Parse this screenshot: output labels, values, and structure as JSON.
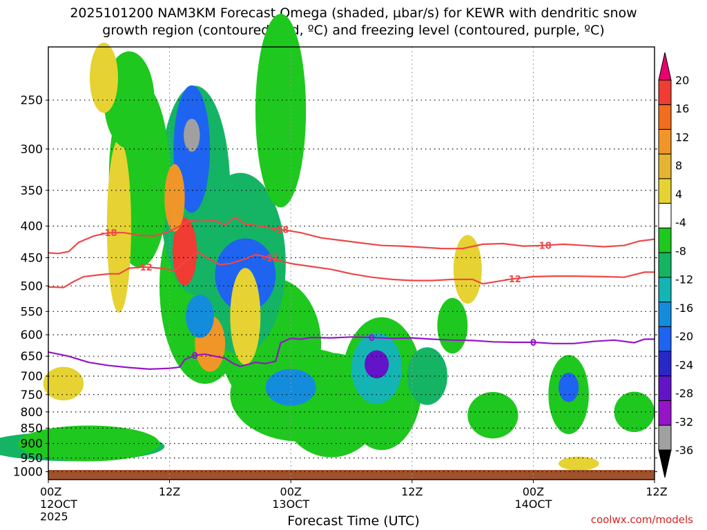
{
  "title": {
    "line1": "2025101200 NAM3KM Forecast Omega (shaded, µbar/s) for KEWR with dendritic snow",
    "line2": "growth region (contoured, red, ºC) and freezing level (contoured, purple, ºC)"
  },
  "credit": "coolwx.com/models",
  "chart_data": {
    "type": "heatmap",
    "xlabel": "Forecast Time (UTC)",
    "ylabel": "",
    "x_range_hours": [
      0,
      60
    ],
    "y_range_hpa": [
      1030,
      205
    ],
    "y_scale": "log-pressure",
    "grid": true,
    "x_ticks": [
      {
        "hour": 0,
        "lines": [
          "00Z",
          "12OCT",
          "2025"
        ]
      },
      {
        "hour": 12,
        "lines": [
          "12Z"
        ]
      },
      {
        "hour": 24,
        "lines": [
          "00Z",
          "13OCT"
        ]
      },
      {
        "hour": 36,
        "lines": [
          "12Z"
        ]
      },
      {
        "hour": 48,
        "lines": [
          "00Z",
          "14OCT"
        ]
      },
      {
        "hour": 60,
        "lines": [
          "12Z"
        ]
      }
    ],
    "y_ticks": [
      250,
      300,
      350,
      400,
      450,
      500,
      550,
      600,
      650,
      700,
      750,
      800,
      850,
      900,
      950,
      1000
    ],
    "colorbar": {
      "labels": [
        "20",
        "16",
        "12",
        "8",
        "4",
        "-4",
        "-8",
        "-12",
        "-16",
        "-20",
        "-24",
        "-28",
        "-32",
        "-36"
      ],
      "colors": [
        "#e8006e",
        "#f03c32",
        "#f06e1e",
        "#f09628",
        "#e6b432",
        "#e6d232",
        "#ffffff",
        "#1ec81e",
        "#14b464",
        "#14b4b4",
        "#148cdc",
        "#1e64f0",
        "#2828c8",
        "#6414c8",
        "#9614c8",
        "#a0a0a0",
        "#000000"
      ]
    },
    "contours": [
      {
        "label": "-18",
        "color": "#f04646",
        "points": [
          [
            0,
            442
          ],
          [
            1,
            443
          ],
          [
            2,
            440
          ],
          [
            3,
            425
          ],
          [
            4.5,
            415
          ],
          [
            6,
            410
          ],
          [
            7.5,
            410
          ],
          [
            9,
            414
          ],
          [
            10.5,
            415
          ],
          [
            12,
            408
          ],
          [
            13,
            400
          ],
          [
            14,
            392
          ],
          [
            15,
            393
          ],
          [
            16.5,
            392
          ],
          [
            17.5,
            398
          ],
          [
            18.5,
            387
          ],
          [
            19.5,
            397
          ],
          [
            21,
            400
          ],
          [
            23,
            405
          ],
          [
            25,
            410
          ],
          [
            27,
            418
          ],
          [
            29,
            422
          ],
          [
            31,
            426
          ],
          [
            33,
            430
          ],
          [
            35,
            431
          ],
          [
            37,
            433
          ],
          [
            39,
            435
          ],
          [
            41,
            435
          ],
          [
            43,
            428
          ],
          [
            45,
            427
          ],
          [
            47,
            431
          ],
          [
            49,
            430
          ],
          [
            51,
            428
          ],
          [
            53,
            430
          ],
          [
            55,
            432
          ],
          [
            57,
            430
          ],
          [
            58.5,
            423
          ],
          [
            60,
            420
          ]
        ]
      },
      {
        "label": "-12",
        "color": "#f04646",
        "points": [
          [
            0,
            502
          ],
          [
            1.5,
            503
          ],
          [
            2.5,
            492
          ],
          [
            3.5,
            483
          ],
          [
            5,
            480
          ],
          [
            6,
            478
          ],
          [
            7,
            478
          ],
          [
            8,
            468
          ],
          [
            9.5,
            466
          ],
          [
            11,
            468
          ],
          [
            12.5,
            472
          ],
          [
            14,
            450
          ],
          [
            14.8,
            440
          ],
          [
            15.5,
            448
          ],
          [
            17,
            462
          ],
          [
            18,
            460
          ],
          [
            19.5,
            452
          ],
          [
            20.5,
            445
          ],
          [
            22,
            450
          ],
          [
            24,
            460
          ],
          [
            26,
            465
          ],
          [
            28,
            470
          ],
          [
            30,
            478
          ],
          [
            32,
            484
          ],
          [
            34,
            488
          ],
          [
            36,
            490
          ],
          [
            38,
            490
          ],
          [
            40,
            488
          ],
          [
            42,
            488
          ],
          [
            43,
            496
          ],
          [
            44,
            493
          ],
          [
            46,
            487
          ],
          [
            48,
            483
          ],
          [
            50,
            482
          ],
          [
            52,
            482
          ],
          [
            55,
            483
          ],
          [
            57,
            484
          ],
          [
            59,
            475
          ],
          [
            60,
            475
          ]
        ]
      },
      {
        "label": "0",
        "color": "#9614c8",
        "points": [
          [
            0,
            640
          ],
          [
            2,
            650
          ],
          [
            4,
            665
          ],
          [
            6,
            673
          ],
          [
            8,
            678
          ],
          [
            10,
            682
          ],
          [
            12,
            680
          ],
          [
            13,
            677
          ],
          [
            13.5,
            658
          ],
          [
            14.5,
            648
          ],
          [
            15.5,
            645
          ],
          [
            16.5,
            650
          ],
          [
            17.5,
            655
          ],
          [
            18.3,
            668
          ],
          [
            19,
            675
          ],
          [
            20.5,
            665
          ],
          [
            21.5,
            668
          ],
          [
            22.5,
            662
          ],
          [
            23,
            618
          ],
          [
            24,
            608
          ],
          [
            25,
            610
          ],
          [
            26,
            606
          ],
          [
            28,
            607
          ],
          [
            30,
            605
          ],
          [
            32,
            606
          ],
          [
            34,
            608
          ],
          [
            36,
            607
          ],
          [
            38,
            610
          ],
          [
            40,
            612
          ],
          [
            42,
            613
          ],
          [
            44,
            616
          ],
          [
            46,
            617
          ],
          [
            48,
            617
          ],
          [
            50,
            620
          ],
          [
            52,
            620
          ],
          [
            54,
            615
          ],
          [
            56,
            612
          ],
          [
            58,
            618
          ],
          [
            59,
            610
          ],
          [
            60,
            610
          ]
        ]
      }
    ],
    "freezing_label_hours": [
      15,
      32.5,
      48.5
    ],
    "cells": [
      {
        "t": 14.2,
        "p": 285,
        "dt": 0.8,
        "dp": 35,
        "v": -34
      },
      {
        "t": 14.2,
        "p": 300,
        "dt": 1.8,
        "dp": 140,
        "v": -22
      },
      {
        "t": 14.5,
        "p": 350,
        "dt": 3.5,
        "dp": 260,
        "v": -10
      },
      {
        "t": 15.0,
        "p": 560,
        "dt": 1.4,
        "dp": 90,
        "v": -18
      },
      {
        "t": 15.5,
        "p": 500,
        "dt": 4.5,
        "dp": 350,
        "v": -6
      },
      {
        "t": 19.5,
        "p": 480,
        "dt": 3,
        "dp": 130,
        "v": -22
      },
      {
        "t": 19.0,
        "p": 460,
        "dt": 4.5,
        "dp": 300,
        "v": -10
      },
      {
        "t": 22.0,
        "p": 620,
        "dt": 5,
        "dp": 300,
        "v": -6
      },
      {
        "t": 24.0,
        "p": 730,
        "dt": 2.5,
        "dp": 100,
        "v": -16
      },
      {
        "t": 25.0,
        "p": 750,
        "dt": 7,
        "dp": 260,
        "v": -6
      },
      {
        "t": 32.5,
        "p": 670,
        "dt": 1.2,
        "dp": 70,
        "v": -30
      },
      {
        "t": 32.5,
        "p": 680,
        "dt": 2.5,
        "dp": 180,
        "v": -14
      },
      {
        "t": 33.0,
        "p": 720,
        "dt": 4,
        "dp": 350,
        "v": -6
      },
      {
        "t": 37.5,
        "p": 700,
        "dt": 2,
        "dp": 150,
        "v": -10
      },
      {
        "t": 51.5,
        "p": 730,
        "dt": 1,
        "dp": 80,
        "v": -22
      },
      {
        "t": 51.5,
        "p": 750,
        "dt": 2,
        "dp": 220,
        "v": -6
      },
      {
        "t": 28.0,
        "p": 780,
        "dt": 5,
        "dp": 300,
        "v": -6
      },
      {
        "t": 2.5,
        "p": 910,
        "dt": 9,
        "dp": 100,
        "v": -10
      },
      {
        "t": 4.0,
        "p": 900,
        "dt": 7,
        "dp": 120,
        "v": -6
      },
      {
        "t": 9.0,
        "p": 330,
        "dt": 3,
        "dp": 220,
        "v": -6
      },
      {
        "t": 8.0,
        "p": 250,
        "dt": 2.5,
        "dp": 90,
        "v": -6
      },
      {
        "t": 23.0,
        "p": 260,
        "dt": 2.5,
        "dp": 180,
        "v": -6
      },
      {
        "t": 40.0,
        "p": 580,
        "dt": 1.5,
        "dp": 120,
        "v": -6
      },
      {
        "t": 44.0,
        "p": 810,
        "dt": 2.5,
        "dp": 140,
        "v": -6
      },
      {
        "t": 58.0,
        "p": 800,
        "dt": 2,
        "dp": 120,
        "v": -6
      },
      {
        "t": 13.5,
        "p": 440,
        "dt": 1.2,
        "dp": 110,
        "v": 18
      },
      {
        "t": 16.0,
        "p": 620,
        "dt": 1.5,
        "dp": 130,
        "v": 10
      },
      {
        "t": 12.5,
        "p": 360,
        "dt": 1,
        "dp": 90,
        "v": 8
      },
      {
        "t": 19.5,
        "p": 560,
        "dt": 1.5,
        "dp": 200,
        "v": 6
      },
      {
        "t": 7.0,
        "p": 400,
        "dt": 1.2,
        "dp": 250,
        "v": 5
      },
      {
        "t": 41.5,
        "p": 470,
        "dt": 1.4,
        "dp": 120,
        "v": 5
      },
      {
        "t": 1.5,
        "p": 720,
        "dt": 2,
        "dp": 90,
        "v": 5
      },
      {
        "t": 52.5,
        "p": 970,
        "dt": 2,
        "dp": 50,
        "v": 5
      },
      {
        "t": 5.5,
        "p": 230,
        "dt": 1.4,
        "dp": 60,
        "v": 5
      }
    ]
  }
}
